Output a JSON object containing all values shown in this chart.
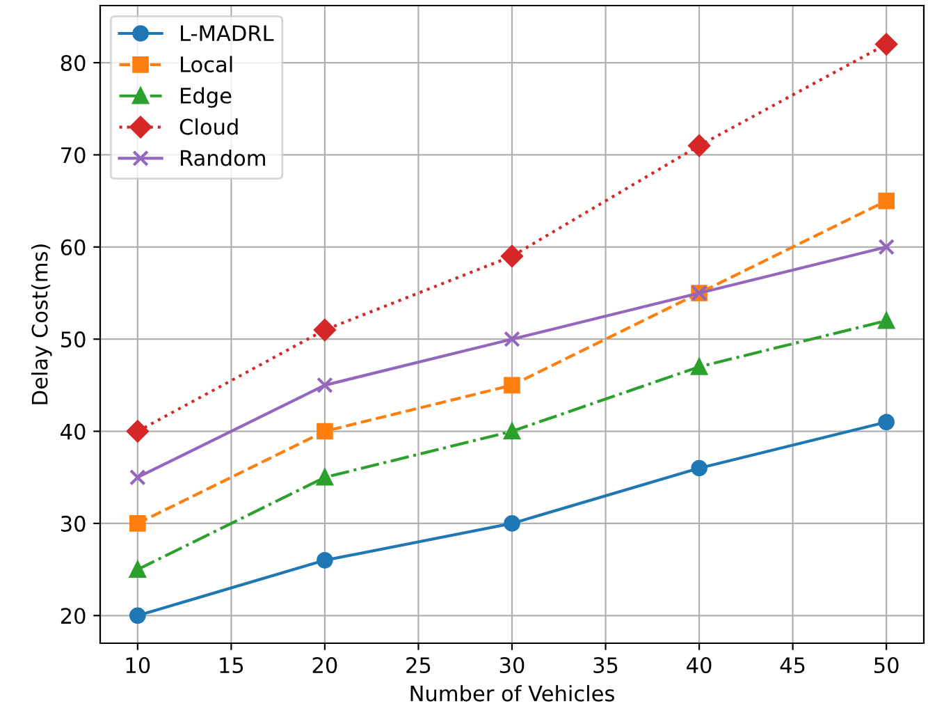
{
  "chart_data": {
    "type": "line",
    "xlabel": "Number of Vehicles",
    "ylabel": "Delay Cost(ms)",
    "x": [
      10,
      20,
      30,
      40,
      50
    ],
    "series": [
      {
        "name": "L-MADRL",
        "color": "#1f77b4",
        "marker": "circle",
        "line_style": "solid",
        "values": [
          20,
          26,
          30,
          36,
          41
        ]
      },
      {
        "name": "Local",
        "color": "#ff7f0e",
        "marker": "square",
        "line_style": "dashed",
        "values": [
          30,
          40,
          45,
          55,
          65
        ]
      },
      {
        "name": "Edge",
        "color": "#2ca02c",
        "marker": "triangle",
        "line_style": "dashdot",
        "values": [
          25,
          35,
          40,
          47,
          52
        ]
      },
      {
        "name": "Cloud",
        "color": "#d62728",
        "marker": "diamond",
        "line_style": "dotted",
        "values": [
          40,
          51,
          59,
          71,
          82
        ]
      },
      {
        "name": "Random",
        "color": "#9467bd",
        "marker": "cross",
        "line_style": "solid",
        "values": [
          35,
          45,
          50,
          55,
          60
        ]
      }
    ],
    "xlim": [
      8,
      52
    ],
    "xticks": [
      10,
      15,
      20,
      25,
      30,
      35,
      40,
      45,
      50
    ],
    "ylim": [
      17,
      86.2
    ],
    "yticks": [
      20,
      30,
      40,
      50,
      60,
      70,
      80
    ],
    "grid": true,
    "legend": "top left"
  }
}
